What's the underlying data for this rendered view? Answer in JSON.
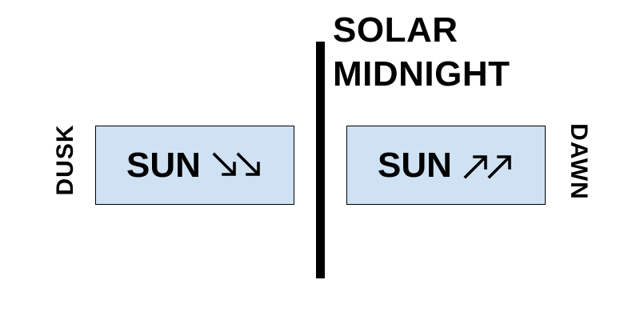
{
  "heading": {
    "line1": "SOLAR",
    "line2": "MIDNIGHT"
  },
  "left_panel": {
    "side_label": "DUSK",
    "box_text": "SUN",
    "arrow_icon": "double-arrow-down-right",
    "box_color": "#cfe2f3"
  },
  "right_panel": {
    "side_label": "DAWN",
    "box_text": "SUN",
    "arrow_icon": "double-arrow-up-right",
    "box_color": "#cfe2f3"
  }
}
